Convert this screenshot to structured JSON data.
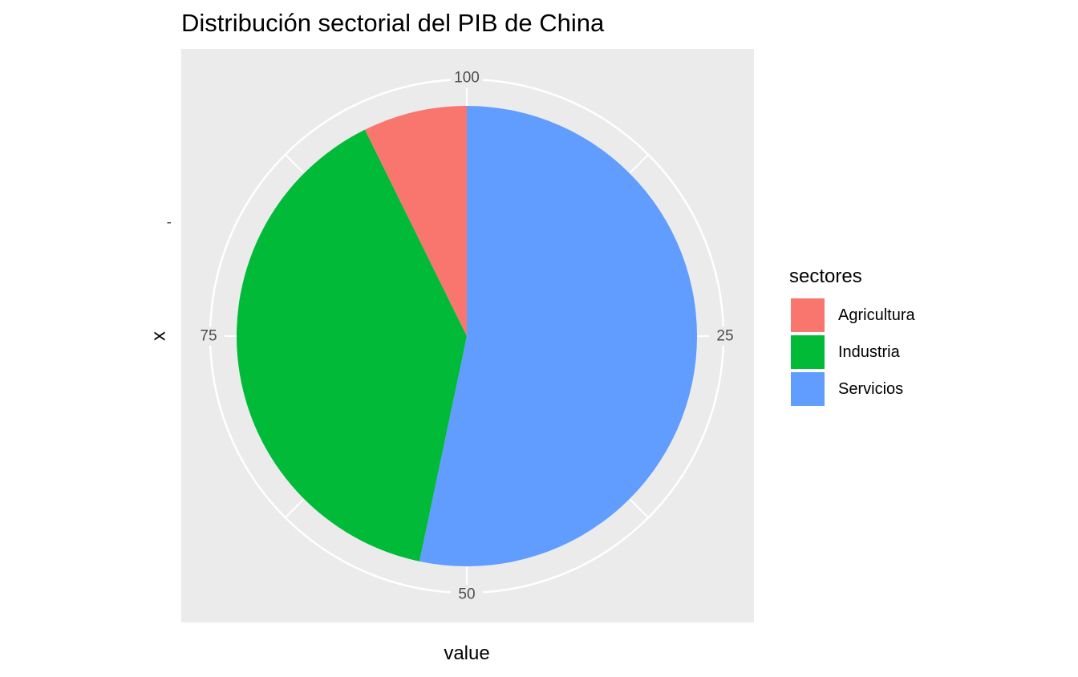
{
  "chart_data": {
    "type": "pie",
    "title": "Distribución sectorial del PIB de  China",
    "xlabel": "value",
    "ylabel": "x",
    "y_tick_label": "-",
    "theta_ticks": [
      "100",
      "25",
      "50",
      "75"
    ],
    "theta_tick_values": [
      0,
      25,
      50,
      75
    ],
    "theta_range": [
      0,
      100
    ],
    "grid": true,
    "legend": {
      "title": "sectores",
      "placement": "right"
    },
    "categories": [
      "Agricultura",
      "Industria",
      "Servicios"
    ],
    "values": [
      7.3,
      39.4,
      53.3
    ],
    "colors": [
      "#F8766D",
      "#00BA38",
      "#619CFF"
    ],
    "panel_background": "#EBEBEB",
    "grid_color": "#FFFFFF"
  }
}
